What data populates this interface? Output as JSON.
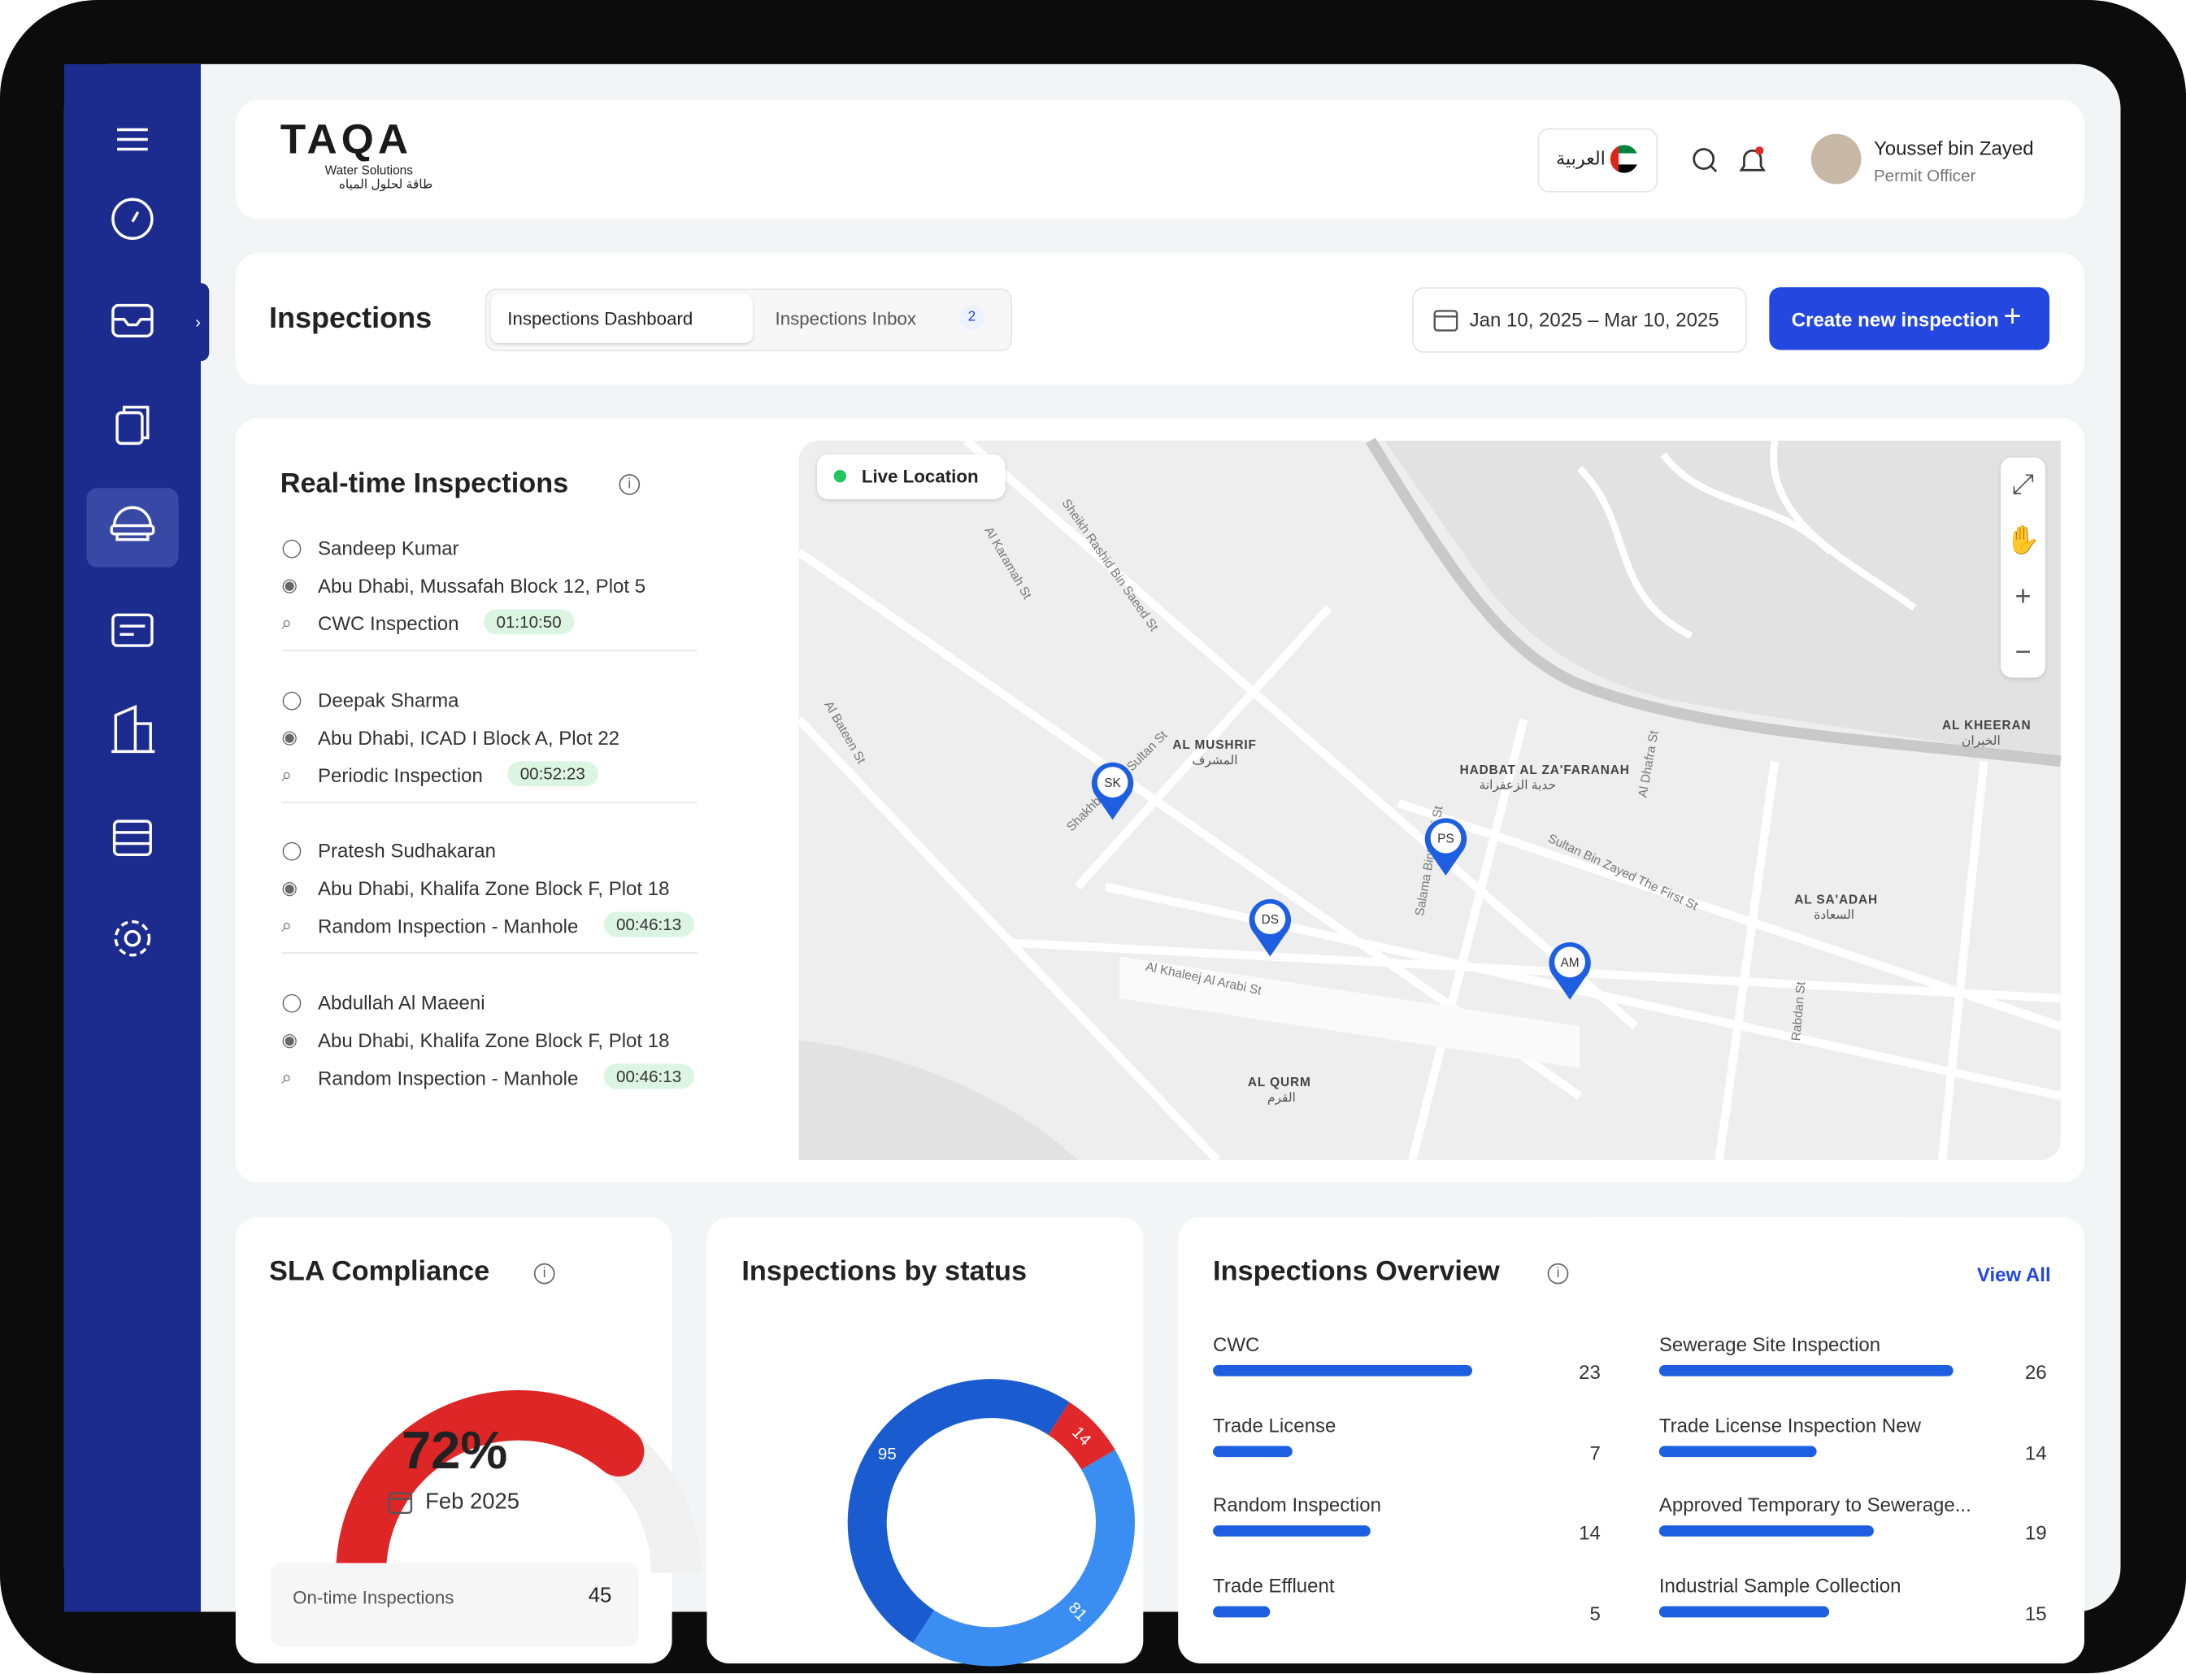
{
  "header": {
    "logo": "TAQA",
    "logo_subtitle": "Water Solutions",
    "logo_arabic": "طاقة لحلول المياه",
    "language": "العربية",
    "user_name": "Youssef bin Zayed",
    "user_role": "Permit Officer"
  },
  "toolbar": {
    "title": "Inspections",
    "tabs": [
      "Inspections Dashboard",
      "Inspections Inbox"
    ],
    "inbox_badge": 2,
    "date_range": "Jan 10, 2025 – Mar 10, 2025",
    "create_button": "Create new inspection"
  },
  "realtime": {
    "title": "Real-time Inspections",
    "items": [
      {
        "inspector": "Sandeep Kumar",
        "location": "Abu Dhabi, Mussafah Block 12, Plot 5",
        "type": "CWC Inspection",
        "timer": "01:10:50"
      },
      {
        "inspector": "Deepak Sharma",
        "location": "Abu Dhabi, ICAD I Block A, Plot 22",
        "type": "Periodic Inspection",
        "timer": "00:52:23"
      },
      {
        "inspector": "Pratesh Sudhakaran",
        "location": "Abu Dhabi, Khalifa Zone Block F, Plot 18",
        "type": "Random Inspection - Manhole",
        "timer": "00:46:13"
      },
      {
        "inspector": "Abdullah Al Maeeni",
        "location": "Abu Dhabi, Khalifa Zone Block F, Plot 18",
        "type": "Random Inspection - Manhole",
        "timer": "00:46:13"
      }
    ]
  },
  "map": {
    "live_label": "Live Location",
    "pins": [
      "SK",
      "PS",
      "DS",
      "AM"
    ],
    "districts": [
      {
        "name": "AL MUSHRIF",
        "arabic": "المشرف"
      },
      {
        "name": "HADBAT AL ZA'FARANAH",
        "arabic": "حدبة الزعفرانة"
      },
      {
        "name": "AL SA'ADAH",
        "arabic": "السعادة"
      },
      {
        "name": "AL QURM",
        "arabic": "القرم"
      },
      {
        "name": "AL KHEERAN",
        "arabic": "الخيران"
      }
    ],
    "streets": [
      "Al Khaleej Al Arabi St",
      "Shakhbout Bin Sultan St",
      "Sultan Bin Zayed The First St",
      "Salama Bint Butti St",
      "Rabdan St",
      "Al Dhafra St",
      "Sheikh Rashid Bin Saeed St",
      "Al Karamah St",
      "Al Bateen St"
    ]
  },
  "sla": {
    "title": "SLA Compliance",
    "value": 72,
    "value_label": "72%",
    "period": "Feb 2025",
    "ontime_label": "On-time Inspections",
    "ontime_value": 45
  },
  "status": {
    "title": "Inspections by status",
    "values": [
      95,
      14,
      81
    ],
    "colors": [
      "#1a5cd0",
      "#e0282b",
      "#3a8ef2"
    ]
  },
  "overview": {
    "title": "Inspections Overview",
    "view_all": "View All",
    "items": [
      {
        "name": "CWC",
        "value": 23
      },
      {
        "name": "Sewerage Site Inspection",
        "value": 26
      },
      {
        "name": "Trade License",
        "value": 7
      },
      {
        "name": "Trade License Inspection New",
        "value": 14
      },
      {
        "name": "Random Inspection",
        "value": 14
      },
      {
        "name": "Approved Temporary to Sewerage...",
        "value": 19
      },
      {
        "name": "Trade Effluent",
        "value": 5
      },
      {
        "name": "Industrial Sample Collection",
        "value": 15
      }
    ]
  }
}
